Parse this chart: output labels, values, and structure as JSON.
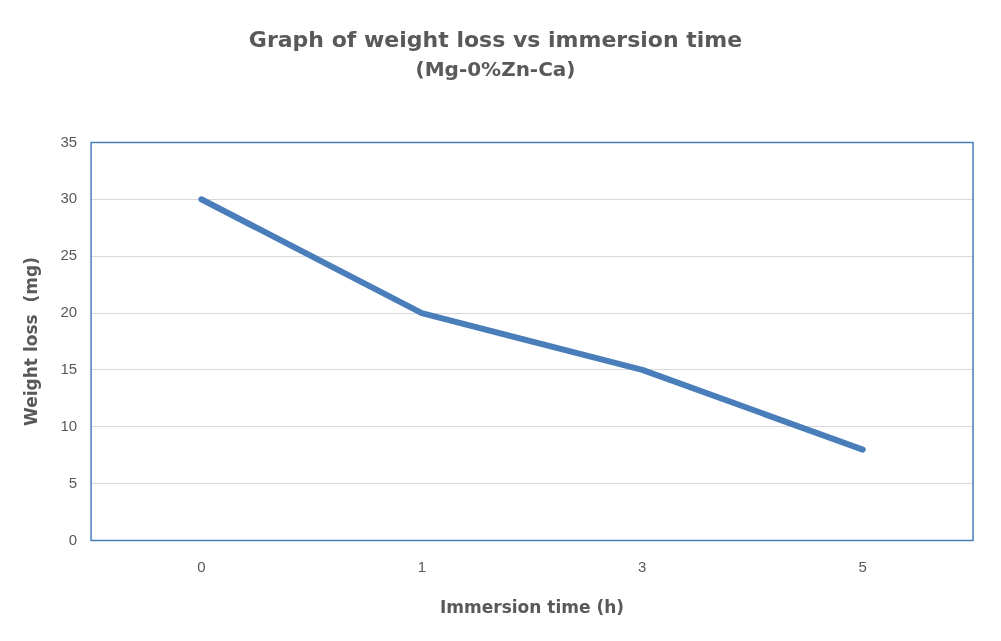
{
  "chart_data": {
    "type": "line",
    "title": "Graph of weight loss vs immersion time",
    "subtitle": "(Mg-0%Zn-Ca)",
    "xlabel": "Immersion time (h)",
    "ylabel": "Weight loss  (mg)",
    "categories": [
      "0",
      "1",
      "3",
      "5"
    ],
    "series": [
      {
        "color": "#4a7ebb",
        "values": [
          30,
          20,
          15,
          8
        ]
      }
    ],
    "ylim": [
      0,
      35
    ],
    "yticks": [
      0,
      5,
      10,
      15,
      20,
      25,
      30,
      35
    ],
    "grid": "y",
    "legend": false,
    "marker": "none"
  }
}
